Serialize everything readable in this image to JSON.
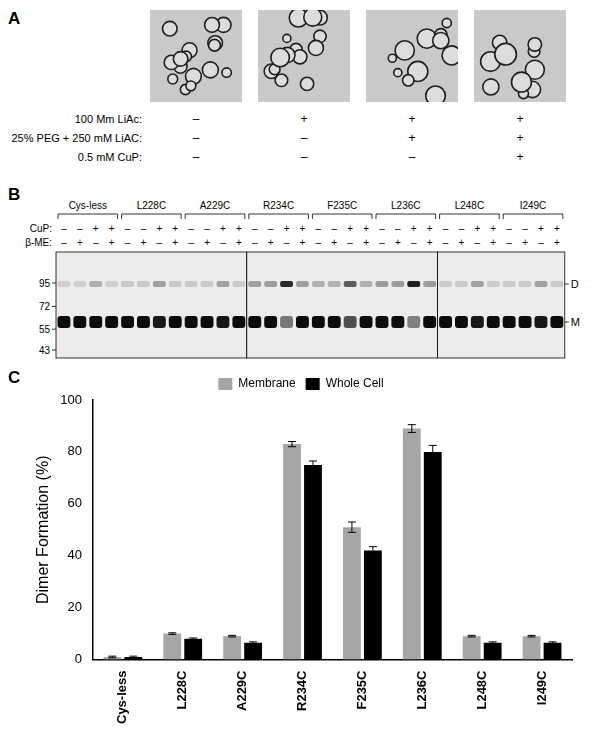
{
  "panel_a": {
    "label": "A",
    "conditions": [
      {
        "name": "100 Mm LiAc:",
        "signs": [
          "–",
          "+",
          "+",
          "+"
        ]
      },
      {
        "name": "25% PEG + 250 mM LiAC:",
        "signs": [
          "–",
          "–",
          "+",
          "+"
        ]
      },
      {
        "name": "0.5 mM CuP:",
        "signs": [
          "–",
          "–",
          "–",
          "+"
        ]
      }
    ]
  },
  "panel_b": {
    "label": "B",
    "groups": [
      "Cys-less",
      "L228C",
      "A229C",
      "R234C",
      "F235C",
      "L236C",
      "L248C",
      "I249C"
    ],
    "rows": [
      {
        "name": "CuP:",
        "signs": [
          "–",
          "–",
          "+",
          "+"
        ]
      },
      {
        "name": "β-ME:",
        "signs": [
          "–",
          "+",
          "–",
          "+"
        ]
      }
    ],
    "mw_markers": [
      95,
      72,
      55,
      43
    ],
    "band_labels": [
      "D",
      "M"
    ]
  },
  "panel_c": {
    "label": "C"
  },
  "chart_data": {
    "type": "bar",
    "categories": [
      "Cys-less",
      "L228C",
      "A229C",
      "R234C",
      "F235C",
      "L236C",
      "L248C",
      "I249C"
    ],
    "series": [
      {
        "name": "Membrane",
        "color": "#a6a6a6",
        "values": [
          1,
          10,
          9,
          83,
          51,
          89,
          9,
          9
        ],
        "errors": [
          0.3,
          0.3,
          0.3,
          1,
          2,
          1.5,
          0.3,
          0.3
        ]
      },
      {
        "name": "Whole Cell",
        "color": "#000000",
        "values": [
          1,
          8,
          6.5,
          75,
          42,
          80,
          6.5,
          6.5
        ],
        "errors": [
          0.3,
          0.3,
          0.3,
          1.5,
          1.5,
          2.5,
          0.3,
          0.3
        ]
      }
    ],
    "y_label": "Dimer Formation (%)",
    "ylim": [
      0,
      100
    ],
    "yticks": [
      0,
      20,
      40,
      60,
      80,
      100
    ],
    "grid": false,
    "legend": "top"
  }
}
